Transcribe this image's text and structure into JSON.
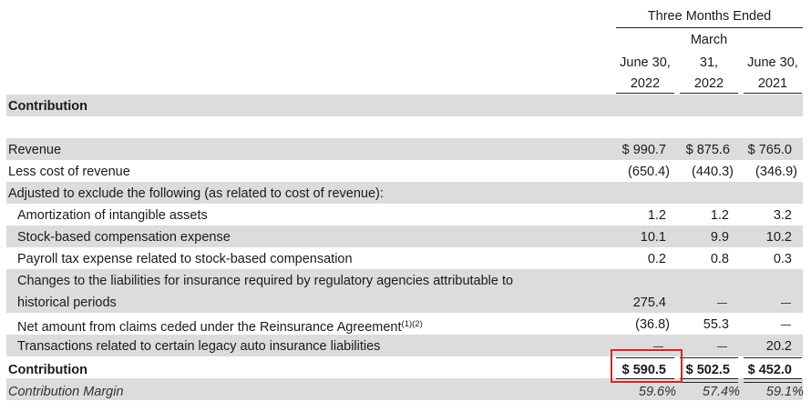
{
  "header": {
    "period_title": "Three Months Ended",
    "columns": [
      {
        "lines": [
          "",
          "June 30,",
          "2022"
        ]
      },
      {
        "lines": [
          "March",
          "31,",
          "2022"
        ]
      },
      {
        "lines": [
          "",
          "June 30,",
          "2021"
        ]
      }
    ]
  },
  "section_title": "Contribution",
  "rows": [
    {
      "label": "Revenue",
      "values": [
        "$ 990.7",
        "$ 875.6",
        "$ 765.0"
      ]
    },
    {
      "label": "Less cost of revenue",
      "values": [
        "(650.4)",
        "(440.3)",
        "(346.9)"
      ]
    },
    {
      "label": "Adjusted to exclude the following (as related to cost of revenue):"
    },
    {
      "label": "Amortization of intangible assets",
      "values": [
        "1.2",
        "1.2",
        "3.2"
      ]
    },
    {
      "label": "Stock-based compensation expense",
      "values": [
        "10.1",
        "9.9",
        "10.2"
      ]
    },
    {
      "label": "Payroll tax expense related to stock-based compensation",
      "values": [
        "0.2",
        "0.8",
        "0.3"
      ]
    },
    {
      "label_lines": [
        "Changes to the liabilities for insurance required by regulatory agencies attributable to",
        "historical periods"
      ],
      "values": [
        "275.4",
        "—",
        "—"
      ]
    },
    {
      "label": "Net amount from claims ceded under the Reinsurance Agreement",
      "footnote": "(1)(2)",
      "values": [
        "(36.8)",
        "55.3",
        "—"
      ]
    },
    {
      "label": "Transactions related to certain legacy auto insurance liabilities",
      "values": [
        "—",
        "—",
        "20.2"
      ]
    },
    {
      "label": "Contribution",
      "values": [
        "$ 590.5",
        "$ 502.5",
        "$ 452.0"
      ]
    },
    {
      "label": "Contribution Margin",
      "values": [
        "59.6%",
        "57.4%",
        "59.1%"
      ]
    }
  ]
}
